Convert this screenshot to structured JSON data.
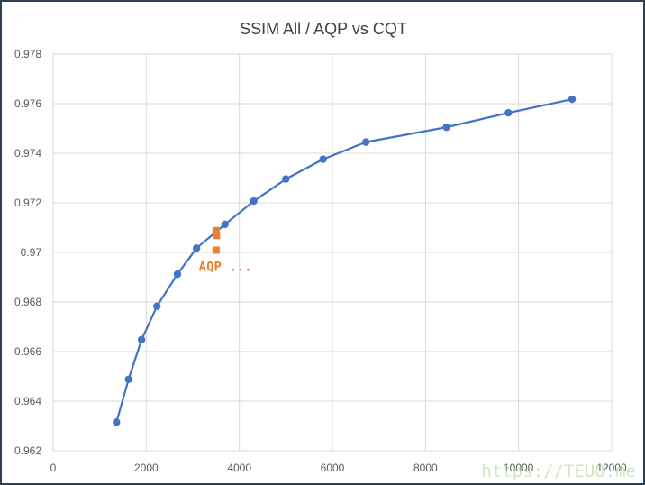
{
  "chart_data": {
    "type": "scatter",
    "title": "SSIM All / AQP vs CQT",
    "xlabel": "",
    "ylabel": "",
    "xlim": [
      0,
      12000
    ],
    "ylim": [
      0.962,
      0.978
    ],
    "xticks": [
      0,
      2000,
      4000,
      6000,
      8000,
      10000,
      12000
    ],
    "yticks": [
      0.962,
      0.964,
      0.966,
      0.968,
      0.97,
      0.972,
      0.974,
      0.976,
      0.978
    ],
    "ytick_labels": [
      "0.962",
      "0.964",
      "0.966",
      "0.968",
      "0.97",
      "0.972",
      "0.974",
      "0.976",
      "0.978"
    ],
    "grid": true,
    "legend": "none",
    "series": [
      {
        "style": "line-markers",
        "color": "#4472c4",
        "marker": "circle",
        "x": [
          1360,
          1620,
          1900,
          2230,
          2670,
          3080,
          3690,
          4310,
          5000,
          5800,
          6720,
          8450,
          9780,
          11150
        ],
        "y": [
          0.96315,
          0.96488,
          0.96648,
          0.96783,
          0.96912,
          0.97017,
          0.97113,
          0.97207,
          0.97296,
          0.97376,
          0.97445,
          0.97505,
          0.97563,
          0.97618
        ]
      },
      {
        "style": "markers",
        "color": "#ed7d31",
        "marker": "square",
        "x": [
          3500,
          3510,
          3500
        ],
        "y": [
          0.97088,
          0.97068,
          0.97009
        ]
      }
    ],
    "annotations": [
      {
        "text": "AQP ...",
        "x": 3700,
        "y": 0.96925,
        "color": "#ed7d31"
      }
    ]
  },
  "watermark": "https://TEU0.me"
}
